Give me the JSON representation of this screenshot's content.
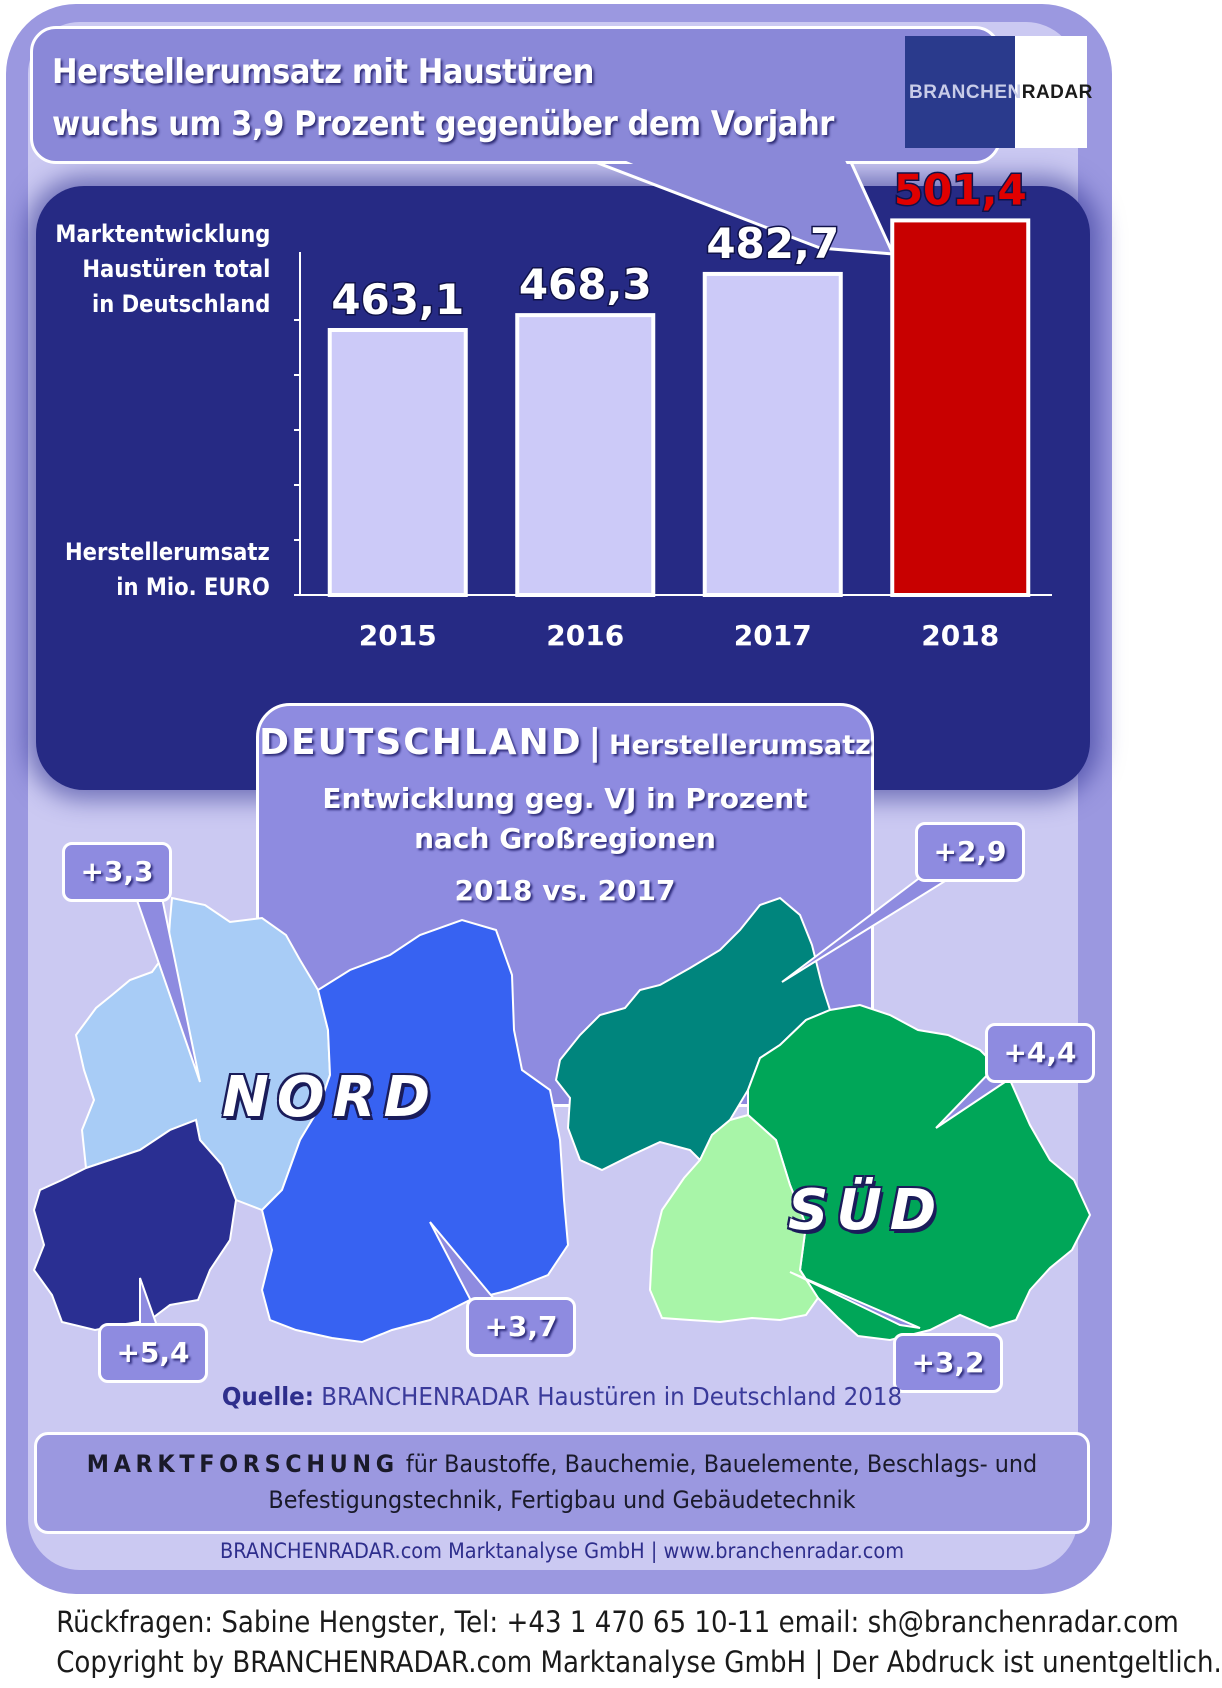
{
  "title": {
    "line1": "Herstellerumsatz mit Haustüren",
    "line2": "wuchs um 3,9 Prozent gegenüber dem Vorjahr"
  },
  "logo": {
    "part1": "BRANCHEN",
    "part2": "RADAR"
  },
  "chart_labels": {
    "market_line1": "Marktentwicklung",
    "market_line2": "Haustüren total",
    "market_line3": "in Deutschland",
    "unit_line1": "Herstellerumsatz",
    "unit_line2": "in Mio. EURO"
  },
  "chart_data": [
    {
      "type": "bar",
      "categories": [
        "2015",
        "2016",
        "2017",
        "2018"
      ],
      "values": [
        463.1,
        468.3,
        482.7,
        501.4
      ],
      "value_labels": [
        "463,1",
        "468,3",
        "482,7",
        "501,4"
      ],
      "highlight_index": 3,
      "colors": {
        "bar": "#cccaf8",
        "highlight": "#c80000",
        "highlight_label": "#e00000",
        "label": "#ffffff"
      },
      "ylabel": "Herstellerumsatz in Mio. EURO",
      "grid": false
    },
    {
      "type": "table",
      "title": "DEUTSCHLAND | Herstellerumsatz",
      "subtitle": "Entwicklung geg. VJ in Prozent nach Großregionen 2018 vs. 2017",
      "groups": [
        {
          "name": "NORD",
          "values": [
            "+3,3",
            "+5,4",
            "+3,7"
          ]
        },
        {
          "name": "SÜD",
          "values": [
            "+2,9",
            "+4,4",
            "+3,2"
          ]
        }
      ]
    }
  ],
  "regions": {
    "header_main": "DEUTSCHLAND",
    "header_sep": "|",
    "header_sub": "Herstellerumsatz",
    "line2": "Entwicklung  geg. VJ in Prozent",
    "line3": "nach Großregionen",
    "line4": "2018 vs. 2017",
    "nord": "NORD",
    "sued": "SÜD",
    "bubbles": [
      "+3,3",
      "+5,4",
      "+3,7",
      "+2,9",
      "+4,4",
      "+3,2"
    ],
    "colors": {
      "nord_nw": "#a8ccf6",
      "nord_west": "#2a2f92",
      "nord_east": "#3762f2",
      "sued_hessen": "#00857d",
      "sued_bayern": "#00a658",
      "sued_bw": "#a8f5a8"
    }
  },
  "source": {
    "label": "Quelle:",
    "text": " BRANCHENRADAR Haustüren in Deutschland 2018"
  },
  "footer": {
    "marktforschung": "MARKTFORSCHUNG",
    "text1": " für Baustoffe, Bauchemie, Bauelemente, Beschlags- und",
    "text2": "Befestigungstechnik, Fertigbau und Gebäudetechnik"
  },
  "company": "BRANCHENRADAR.com Marktanalyse GmbH | www.branchenradar.com",
  "contact": {
    "line1": "Rückfragen: Sabine Hengster, Tel: +43 1 470 65 10-11 email: sh@branchenradar.com",
    "line2": "Copyright by BRANCHENRADAR.com  Marktanalyse GmbH | Der Abdruck ist unentgeltlich."
  }
}
